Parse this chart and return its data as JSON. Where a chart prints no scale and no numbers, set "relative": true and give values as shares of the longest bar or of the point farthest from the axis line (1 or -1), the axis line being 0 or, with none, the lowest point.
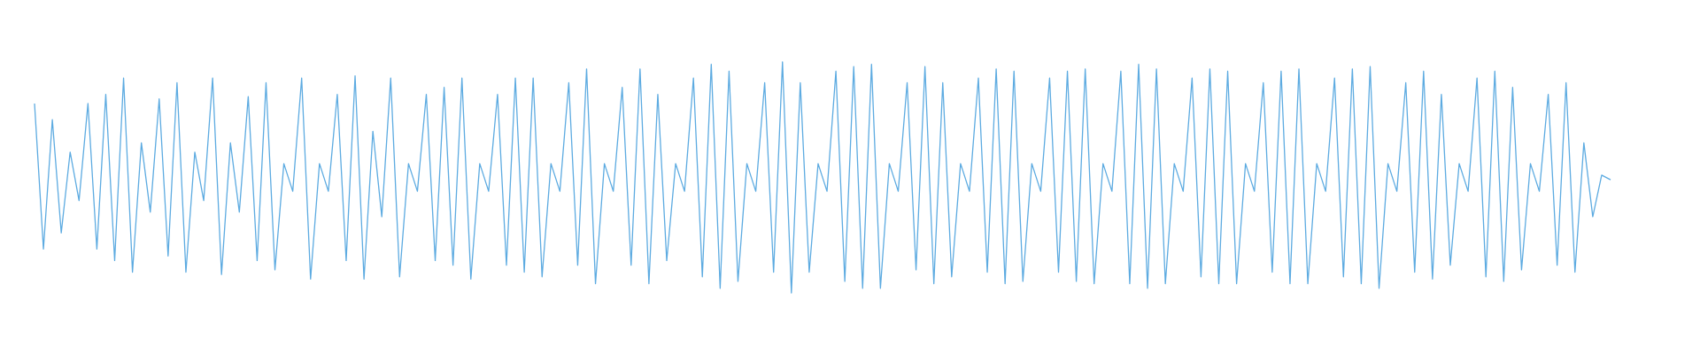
{
  "chart_data": {
    "type": "line",
    "relative": true,
    "categories": [
      null,
      null,
      null,
      null,
      null,
      null,
      null,
      null,
      null,
      null,
      null,
      null,
      null,
      null,
      null,
      null,
      null,
      null,
      null,
      null,
      null,
      null,
      null,
      null,
      null,
      null,
      null,
      null,
      null,
      null,
      null,
      null,
      null,
      null,
      null,
      null,
      null,
      null,
      null,
      null,
      null,
      null,
      null,
      null,
      null,
      null,
      null,
      null,
      null,
      null,
      null,
      null,
      null,
      null,
      null,
      null,
      null,
      null,
      null,
      null,
      null,
      null,
      null,
      null,
      null,
      null,
      null,
      null,
      null,
      null,
      null,
      null,
      null,
      null,
      null,
      null,
      null,
      null,
      null,
      null,
      null,
      null,
      null,
      null,
      null,
      null,
      null,
      null,
      null,
      null,
      null,
      null,
      null,
      null,
      null,
      null,
      null,
      null,
      null,
      null,
      null,
      null,
      null,
      null,
      null,
      null,
      null,
      null,
      null,
      null,
      null,
      null,
      null,
      null,
      null,
      null,
      null,
      null,
      null,
      null,
      null,
      null,
      null,
      null,
      null,
      null,
      null,
      null,
      null,
      null,
      null,
      null,
      null,
      null,
      null,
      null,
      null,
      null,
      null,
      null,
      null,
      null,
      null,
      null,
      null,
      null,
      null,
      null,
      null,
      null,
      null,
      null,
      null,
      null,
      null,
      null,
      null,
      null,
      null,
      null,
      null,
      null,
      null,
      null,
      null,
      null,
      null,
      null,
      null,
      null,
      null,
      null,
      null,
      null,
      null,
      null,
      null,
      null
    ],
    "series": [
      {
        "color": "#5dabe1",
        "values": [
          0.82,
          0.19,
          0.75,
          0.26,
          0.61,
          0.4,
          0.82,
          0.19,
          0.86,
          0.14,
          0.93,
          0.09,
          0.65,
          0.35,
          0.84,
          0.16,
          0.91,
          0.09,
          0.61,
          0.4,
          0.93,
          0.08,
          0.65,
          0.35,
          0.85,
          0.14,
          0.91,
          0.1,
          0.56,
          0.44,
          0.93,
          0.06,
          0.56,
          0.44,
          0.86,
          0.14,
          0.94,
          0.06,
          0.7,
          0.33,
          0.93,
          0.07,
          0.56,
          0.44,
          0.86,
          0.14,
          0.89,
          0.12,
          0.93,
          0.06,
          0.56,
          0.44,
          0.86,
          0.12,
          0.93,
          0.09,
          0.93,
          0.07,
          0.56,
          0.44,
          0.91,
          0.12,
          0.97,
          0.04,
          0.56,
          0.44,
          0.89,
          0.12,
          0.97,
          0.04,
          0.86,
          0.14,
          0.56,
          0.44,
          0.93,
          0.07,
          0.99,
          0.02,
          0.96,
          0.05,
          0.56,
          0.44,
          0.91,
          0.09,
          1.0,
          0.0,
          0.91,
          0.09,
          0.56,
          0.44,
          0.96,
          0.05,
          0.98,
          0.02,
          0.99,
          0.02,
          0.56,
          0.44,
          0.91,
          0.1,
          0.98,
          0.04,
          0.91,
          0.07,
          0.56,
          0.44,
          0.93,
          0.09,
          0.97,
          0.04,
          0.96,
          0.05,
          0.56,
          0.44,
          0.93,
          0.09,
          0.96,
          0.05,
          0.97,
          0.04,
          0.56,
          0.44,
          0.96,
          0.04,
          0.99,
          0.02,
          0.97,
          0.04,
          0.56,
          0.44,
          0.93,
          0.07,
          0.97,
          0.04,
          0.96,
          0.04,
          0.56,
          0.44,
          0.91,
          0.09,
          0.96,
          0.04,
          0.97,
          0.04,
          0.56,
          0.44,
          0.93,
          0.07,
          0.97,
          0.04,
          0.98,
          0.02,
          0.56,
          0.44,
          0.91,
          0.09,
          0.96,
          0.06,
          0.86,
          0.12,
          0.56,
          0.44,
          0.93,
          0.07,
          0.96,
          0.05,
          0.89,
          0.1,
          0.56,
          0.44,
          0.86,
          0.12,
          0.91,
          0.09,
          0.65,
          0.33,
          0.51,
          0.49
        ]
      }
    ]
  }
}
